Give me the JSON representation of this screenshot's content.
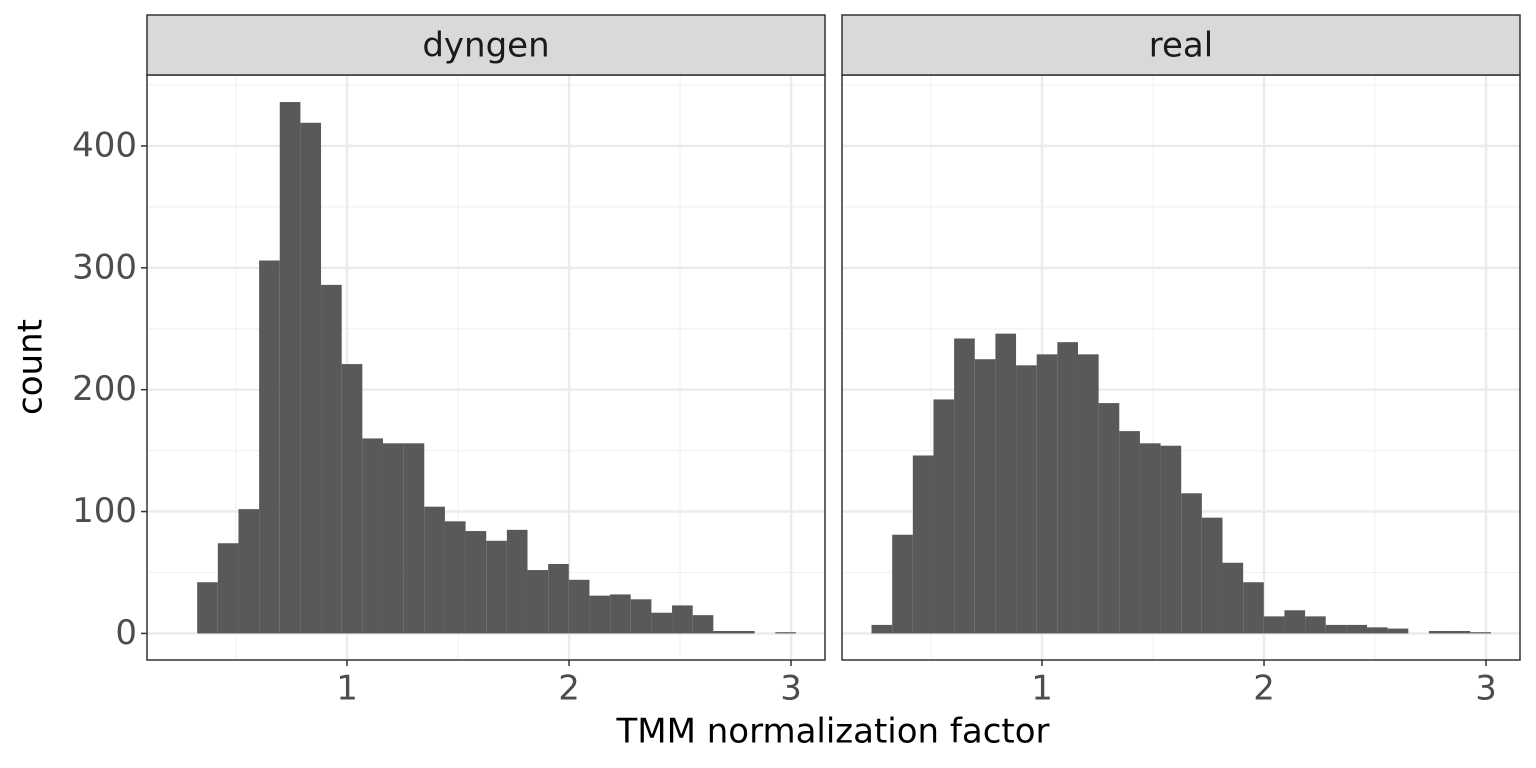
{
  "chart_data": [
    {
      "type": "histogram",
      "title": "dyngen",
      "xlabel": "TMM normalization factor",
      "ylabel": "count",
      "color": "#595959",
      "grid": true,
      "bins": [
        0.232,
        0.325,
        0.418,
        0.511,
        0.604,
        0.697,
        0.79,
        0.883,
        0.976,
        1.069,
        1.162,
        1.255,
        1.348,
        1.441,
        1.534,
        1.627,
        1.72,
        1.813,
        1.906,
        1.999,
        2.092,
        2.185,
        2.278,
        2.371,
        2.464,
        2.557,
        2.65,
        2.743,
        2.836,
        2.929,
        3.022
      ],
      "values": [
        0,
        42,
        74,
        102,
        306,
        436,
        419,
        286,
        221,
        160,
        156,
        156,
        104,
        92,
        84,
        76,
        85,
        52,
        57,
        44,
        31,
        32,
        28,
        17,
        23,
        15,
        2,
        2,
        0,
        1
      ],
      "xlim": [
        0.099,
        3.153
      ],
      "ylim": [
        -21.8,
        458.2
      ],
      "xticks": [
        1,
        2,
        3
      ],
      "yticks": [
        0,
        100,
        200,
        300,
        400
      ],
      "xminor": [
        0.5,
        1.5,
        2.5
      ],
      "yminor": [
        50,
        150,
        250,
        350,
        450
      ]
    },
    {
      "type": "histogram",
      "title": "real",
      "color": "#595959",
      "grid": true,
      "bins": [
        0.232,
        0.325,
        0.418,
        0.511,
        0.604,
        0.697,
        0.79,
        0.883,
        0.976,
        1.069,
        1.162,
        1.255,
        1.348,
        1.441,
        1.534,
        1.627,
        1.72,
        1.813,
        1.906,
        1.999,
        2.092,
        2.185,
        2.278,
        2.371,
        2.464,
        2.557,
        2.65,
        2.743,
        2.836,
        2.929,
        3.022
      ],
      "values": [
        7,
        81,
        146,
        192,
        242,
        225,
        246,
        220,
        229,
        239,
        229,
        189,
        166,
        156,
        154,
        115,
        95,
        58,
        42,
        14,
        19,
        14,
        7,
        7,
        5,
        4,
        0,
        2,
        2,
        1
      ],
      "xlim": [
        0.099,
        3.153
      ],
      "ylim": [
        -21.8,
        458.2
      ],
      "xticks": [
        1,
        2,
        3
      ],
      "yticks": [
        0,
        100,
        200,
        300,
        400
      ],
      "xminor": [
        0.5,
        1.5,
        2.5
      ],
      "yminor": [
        50,
        150,
        250,
        350,
        450
      ]
    }
  ]
}
